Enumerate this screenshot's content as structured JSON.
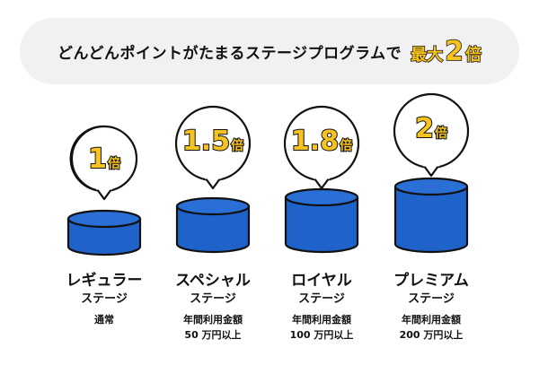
{
  "banner": {
    "text": "どんどんポイントがたまるステージプログラムで",
    "highlight_prefix": "最大",
    "highlight_number": "2",
    "highlight_suffix": "倍"
  },
  "stages": [
    {
      "multiplier": "1",
      "unit": "倍",
      "name": "レギュラー",
      "sub": "ステージ",
      "cond1": "通常",
      "cond2": ""
    },
    {
      "multiplier": "1.5",
      "unit": "倍",
      "name": "スペシャル",
      "sub": "ステージ",
      "cond1": "年間利用金額",
      "cond2": "50 万円以上"
    },
    {
      "multiplier": "1.8",
      "unit": "倍",
      "name": "ロイヤル",
      "sub": "ステージ",
      "cond1": "年間利用金額",
      "cond2": "100 万円以上"
    },
    {
      "multiplier": "2",
      "unit": "倍",
      "name": "プレミアム",
      "sub": "ステージ",
      "cond1": "年間利用金額",
      "cond2": "200 万円以上"
    }
  ],
  "colors": {
    "accent_yellow": "#f6c320",
    "cylinder_blue": "#1f62c9",
    "banner_bg": "#f1f1f1",
    "outline": "#111111"
  }
}
